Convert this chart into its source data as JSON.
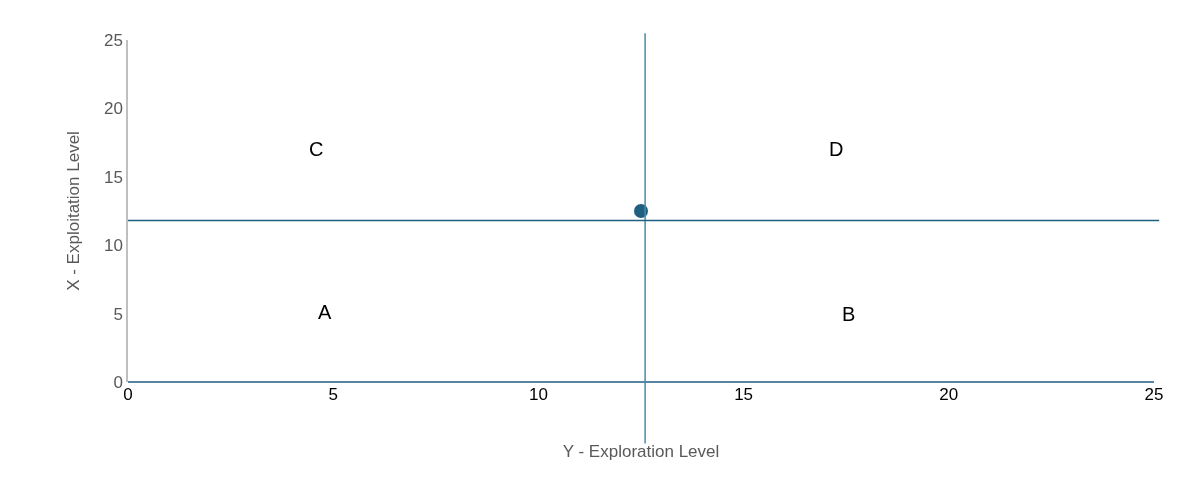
{
  "chart_data": {
    "type": "scatter",
    "xlabel": "Y - Exploration Level",
    "ylabel": "X - Exploitation Level",
    "x": [
      12.5
    ],
    "values": [
      12.5
    ],
    "color": "#1f5f80",
    "marker": "circle",
    "xlim": [
      0,
      25
    ],
    "ylim": [
      0,
      25
    ],
    "xticks": [
      0,
      5,
      10,
      15,
      20,
      25
    ],
    "yticks": [
      0,
      5,
      10,
      15,
      20,
      25
    ],
    "grid": false,
    "legend": false,
    "ref_lines": [
      {
        "axis": "x",
        "value": 12.6,
        "color": "#4a8aa8"
      },
      {
        "axis": "y",
        "value": 11.8,
        "color": "#1f5f80"
      }
    ],
    "annotations": [
      "C",
      "D",
      "A",
      "B"
    ]
  }
}
